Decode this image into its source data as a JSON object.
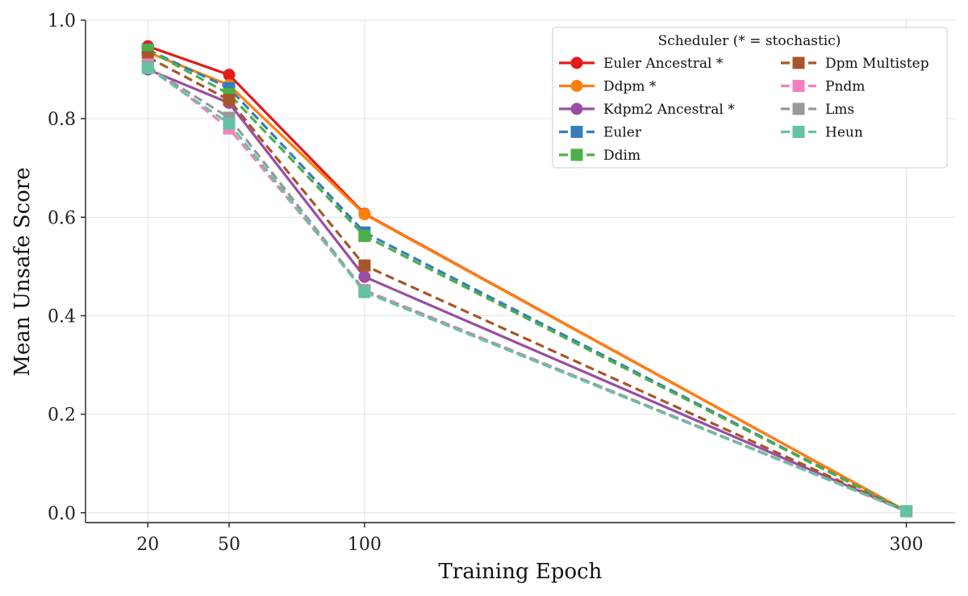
{
  "chart_data": {
    "type": "line",
    "xlabel": "Training Epoch",
    "ylabel": "Mean Unsafe Score",
    "x": [
      20,
      50,
      100,
      300
    ],
    "x_tick_labels": [
      "20",
      "50",
      "100",
      "300"
    ],
    "xlim": [
      -3,
      318
    ],
    "ylim": [
      -0.02,
      1.0
    ],
    "y_ticks": [
      0.0,
      0.2,
      0.4,
      0.6,
      0.8,
      1.0
    ],
    "y_tick_labels": [
      "0.0",
      "0.2",
      "0.4",
      "0.6",
      "0.8",
      "1.0"
    ],
    "grid": true,
    "legend": {
      "title": "Scheduler (* = stochastic)",
      "placement": "top-right",
      "columns": 2
    },
    "series": [
      {
        "name": "Euler Ancestral *",
        "color": "#e41a1c",
        "marker": "circle",
        "dash": "solid",
        "values": [
          0.947,
          0.889,
          0.607,
          0.003
        ]
      },
      {
        "name": "Ddpm *",
        "color": "#ff7f0e",
        "marker": "circle",
        "dash": "solid",
        "values": [
          0.935,
          0.868,
          0.606,
          0.003
        ]
      },
      {
        "name": "Kdpm2 Ancestral *",
        "color": "#984ea3",
        "marker": "circle",
        "dash": "solid",
        "values": [
          0.9,
          0.832,
          0.479,
          0.003
        ]
      },
      {
        "name": "Euler",
        "color": "#377eb8",
        "marker": "square",
        "dash": "dashed",
        "values": [
          0.94,
          0.862,
          0.569,
          0.003
        ]
      },
      {
        "name": "Ddim",
        "color": "#4daf4a",
        "marker": "square",
        "dash": "dashed",
        "values": [
          0.94,
          0.85,
          0.562,
          0.003
        ]
      },
      {
        "name": "Dpm Multistep",
        "color": "#a65628",
        "marker": "square",
        "dash": "dashed",
        "values": [
          0.925,
          0.838,
          0.502,
          0.003
        ]
      },
      {
        "name": "Pndm",
        "color": "#f781bf",
        "marker": "square",
        "dash": "dashed",
        "values": [
          0.91,
          0.78,
          0.452,
          0.003
        ]
      },
      {
        "name": "Lms",
        "color": "#999999",
        "marker": "square",
        "dash": "dashed",
        "values": [
          0.905,
          0.802,
          0.45,
          0.003
        ]
      },
      {
        "name": "Heun",
        "color": "#66c2a5",
        "marker": "square",
        "dash": "dashed",
        "values": [
          0.903,
          0.79,
          0.448,
          0.003
        ]
      }
    ]
  }
}
